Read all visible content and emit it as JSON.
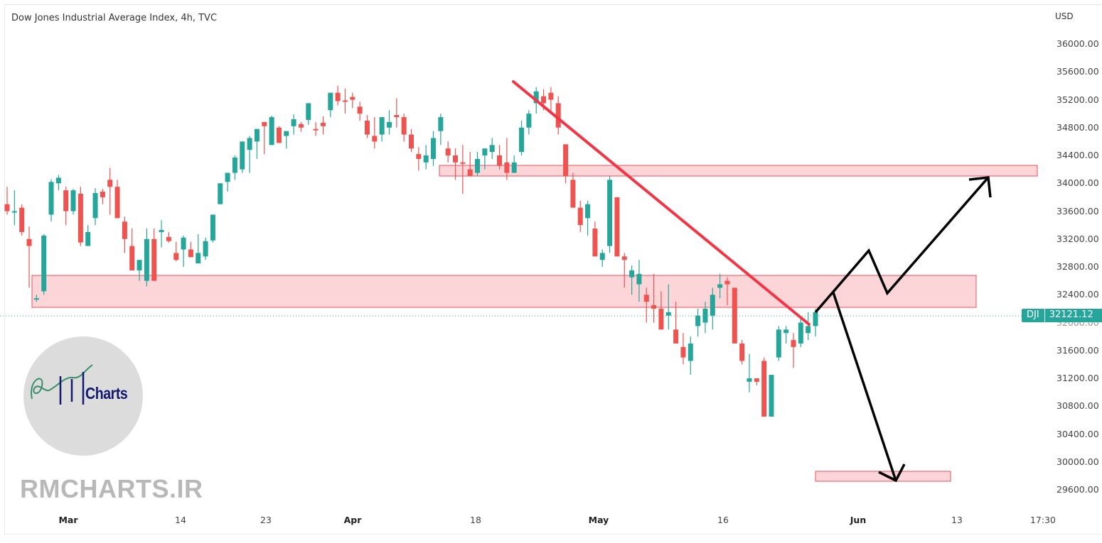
{
  "header": {
    "title": "Dow Jones Industrial Average Index, 4h, TVC"
  },
  "price_axis": {
    "currency": "USD",
    "ticks": [
      "36000.00",
      "35600.00",
      "35200.00",
      "34800.00",
      "34400.00",
      "34000.00",
      "33600.00",
      "33200.00",
      "32800.00",
      "32400.00",
      "32000.00",
      "31600.00",
      "31200.00",
      "30800.00",
      "30400.00",
      "30000.00",
      "29600.00"
    ]
  },
  "time_axis": {
    "ticks": [
      {
        "label": "Mar",
        "major": true
      },
      {
        "label": "14",
        "major": false
      },
      {
        "label": "23",
        "major": false
      },
      {
        "label": "Apr",
        "major": true
      },
      {
        "label": "18",
        "major": false
      },
      {
        "label": "May",
        "major": true
      },
      {
        "label": "16",
        "major": false
      },
      {
        "label": "Jun",
        "major": true
      },
      {
        "label": "13",
        "major": false
      },
      {
        "label": "17:30",
        "major": false
      }
    ]
  },
  "last_price": {
    "symbol": "DJI",
    "value": "32121.12"
  },
  "colors": {
    "up": "#26a69a",
    "down": "#ef5350",
    "zone_fill": "#fbd5d8",
    "zone_border": "#e8505e",
    "trendline": "#f23645",
    "projection": "#000000"
  },
  "watermark": {
    "text": "RMCHARTS.IR"
  },
  "logo": {
    "text": "Charts"
  },
  "chart_data": {
    "type": "candlestick",
    "title": "Dow Jones Industrial Average Index, 4h, TVC",
    "xlabel": "",
    "ylabel": "USD",
    "ylim": [
      29500,
      36200
    ],
    "x_ticks": [
      "Mar",
      "14",
      "23",
      "Apr",
      "18",
      "May",
      "16",
      "Jun",
      "13",
      "17:30"
    ],
    "last_value": 32121.12,
    "grid": false,
    "candles_ohlc_approx": [
      [
        33700,
        33950,
        33550,
        33600
      ],
      [
        33600,
        33900,
        33400,
        33600
      ],
      [
        33650,
        33700,
        33250,
        33300
      ],
      [
        33200,
        33380,
        32500,
        33100
      ],
      [
        32350,
        32400,
        32300,
        32350
      ],
      [
        32450,
        33270,
        32400,
        33250
      ],
      [
        33550,
        34060,
        33450,
        34020
      ],
      [
        34000,
        34120,
        33900,
        34080
      ],
      [
        33900,
        33950,
        33400,
        33600
      ],
      [
        33600,
        33920,
        33550,
        33900
      ],
      [
        33850,
        33950,
        33100,
        33150
      ],
      [
        33100,
        33400,
        33100,
        33300
      ],
      [
        33500,
        33930,
        33400,
        33860
      ],
      [
        33880,
        33920,
        33700,
        33800
      ],
      [
        34050,
        34220,
        33550,
        33950
      ],
      [
        33950,
        34050,
        33650,
        33500
      ],
      [
        33450,
        33520,
        33000,
        33200
      ],
      [
        33100,
        33350,
        33000,
        32750
      ],
      [
        32750,
        32800,
        32600,
        32900
      ],
      [
        32600,
        33350,
        32520,
        33200
      ],
      [
        33200,
        33350,
        32600,
        32600
      ],
      [
        33300,
        33470,
        33080,
        33330
      ],
      [
        33230,
        33300,
        33150,
        33170
      ],
      [
        33000,
        33160,
        32880,
        32900
      ],
      [
        33050,
        33250,
        32800,
        33220
      ],
      [
        33050,
        33160,
        32950,
        32940
      ],
      [
        32850,
        33270,
        32850,
        33000
      ],
      [
        32950,
        33220,
        32900,
        33170
      ],
      [
        33180,
        33550,
        33150,
        33550
      ],
      [
        33700,
        33990,
        33850,
        34000
      ],
      [
        34020,
        34150,
        33880,
        34150
      ],
      [
        34150,
        34400,
        34050,
        34370
      ],
      [
        34200,
        34430,
        34150,
        34600
      ],
      [
        34480,
        34680,
        34150,
        34650
      ],
      [
        34600,
        34700,
        34350,
        34780
      ],
      [
        34880,
        34880,
        34420,
        34820
      ],
      [
        34550,
        34970,
        34580,
        34950
      ],
      [
        34800,
        34820,
        34650,
        34580
      ],
      [
        34680,
        34750,
        34500,
        34750
      ],
      [
        34820,
        34990,
        34700,
        34920
      ],
      [
        34850,
        34880,
        34740,
        34800
      ],
      [
        34910,
        34980,
        34840,
        35150
      ],
      [
        34780,
        34880,
        34680,
        34760
      ],
      [
        34870,
        34960,
        34700,
        34820
      ],
      [
        35050,
        35280,
        34950,
        35300
      ],
      [
        35300,
        35400,
        35120,
        35180
      ],
      [
        35190,
        35360,
        35000,
        35180
      ],
      [
        35240,
        35300,
        35080,
        35200
      ],
      [
        35100,
        35170,
        34900,
        35000
      ],
      [
        34900,
        34980,
        34650,
        34700
      ],
      [
        34680,
        34950,
        34500,
        34600
      ],
      [
        34700,
        34900,
        34600,
        34950
      ],
      [
        34800,
        35050,
        34700,
        34880
      ],
      [
        34980,
        35220,
        34800,
        34950
      ],
      [
        34950,
        35000,
        34600,
        34700
      ],
      [
        34700,
        34780,
        34450,
        34500
      ],
      [
        34420,
        34520,
        34180,
        34350
      ],
      [
        34300,
        34550,
        34200,
        34400
      ],
      [
        34350,
        34750,
        34250,
        34650
      ],
      [
        34750,
        35000,
        34550,
        34950
      ],
      [
        34500,
        34600,
        34300,
        34400
      ],
      [
        34400,
        34500,
        34050,
        34300
      ],
      [
        34300,
        34550,
        33850,
        34280
      ],
      [
        34200,
        34450,
        34100,
        34100
      ],
      [
        34150,
        34450,
        34100,
        34350
      ],
      [
        34400,
        34450,
        34200,
        34500
      ],
      [
        34450,
        34650,
        34350,
        34550
      ],
      [
        34400,
        34550,
        34200,
        34250
      ],
      [
        34300,
        34650,
        34050,
        34150
      ],
      [
        34150,
        34400,
        34150,
        34300
      ],
      [
        34450,
        34900,
        34400,
        34800
      ],
      [
        34800,
        35050,
        34700,
        35000
      ],
      [
        35150,
        35380,
        35000,
        35320
      ],
      [
        35250,
        35350,
        35050,
        35150
      ],
      [
        35300,
        35380,
        35000,
        35200
      ],
      [
        35150,
        35250,
        34700,
        34800
      ],
      [
        34560,
        34560,
        34000,
        34100
      ],
      [
        34050,
        34150,
        33800,
        33650
      ],
      [
        33650,
        33750,
        33300,
        33400
      ],
      [
        33500,
        33750,
        33250,
        33700
      ]
    ],
    "annotations": [
      {
        "type": "zone",
        "label": "resistance",
        "from": 34120,
        "to": 34280
      },
      {
        "type": "zone",
        "label": "support-turned-resistance",
        "from": 32230,
        "to": 32700
      },
      {
        "type": "zone",
        "label": "downside-target",
        "from": 29780,
        "to": 29920
      },
      {
        "type": "trendline",
        "label": "descending",
        "start": 35480,
        "end": 32080
      },
      {
        "type": "projection",
        "label": "bullish-scenario",
        "target": 34000
      },
      {
        "type": "projection",
        "label": "bearish-scenario",
        "target": 29800
      }
    ]
  }
}
